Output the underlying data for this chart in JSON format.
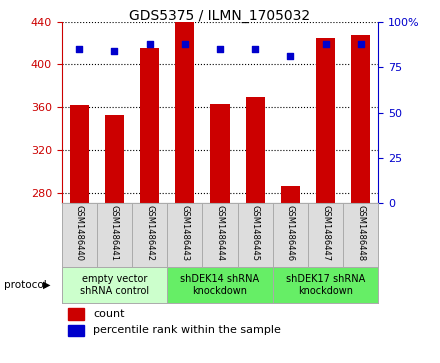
{
  "title": "GDS5375 / ILMN_1705032",
  "samples": [
    "GSM1486440",
    "GSM1486441",
    "GSM1486442",
    "GSM1486443",
    "GSM1486444",
    "GSM1486445",
    "GSM1486446",
    "GSM1486447",
    "GSM1486448"
  ],
  "counts": [
    362,
    353,
    415,
    440,
    363,
    370,
    286,
    425,
    428
  ],
  "percentiles": [
    85,
    84,
    88,
    88,
    85,
    85,
    81,
    88,
    88
  ],
  "ylim_left": [
    270,
    440
  ],
  "ylim_right": [
    0,
    100
  ],
  "yticks_left": [
    280,
    320,
    360,
    400,
    440
  ],
  "yticks_right": [
    0,
    25,
    50,
    75,
    100
  ],
  "bar_color": "#cc0000",
  "scatter_color": "#0000cc",
  "groups": [
    {
      "label": "empty vector\nshRNA control",
      "start": 0,
      "end": 3,
      "color": "#ccffcc"
    },
    {
      "label": "shDEK14 shRNA\nknockdown",
      "start": 3,
      "end": 6,
      "color": "#66ee66"
    },
    {
      "label": "shDEK17 shRNA\nknockdown",
      "start": 6,
      "end": 9,
      "color": "#66ee66"
    }
  ],
  "protocol_label": "protocol",
  "legend_count_label": "count",
  "legend_percentile_label": "percentile rank within the sample",
  "axis_left_color": "#cc0000",
  "axis_right_color": "#0000cc",
  "sample_box_color": "#dddddd",
  "title_fontsize": 10,
  "tick_fontsize": 8,
  "sample_fontsize": 6,
  "group_fontsize": 7,
  "legend_fontsize": 8
}
